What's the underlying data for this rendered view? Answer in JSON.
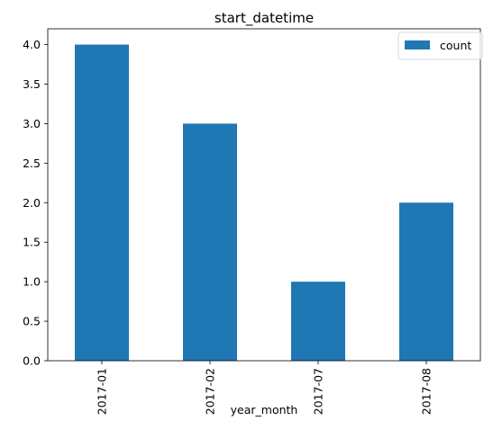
{
  "chart_data": {
    "type": "bar",
    "title": "start_datetime",
    "xlabel": "year_month",
    "ylabel": "",
    "categories": [
      "2017-01",
      "2017-02",
      "2017-07",
      "2017-08"
    ],
    "series": [
      {
        "name": "count",
        "values": [
          4.0,
          3.0,
          1.0,
          2.0
        ]
      }
    ],
    "ylim": [
      0,
      4.2
    ],
    "yticks": [
      0.0,
      0.5,
      1.0,
      1.5,
      2.0,
      2.5,
      3.0,
      3.5,
      4.0
    ],
    "ytick_labels": [
      "0.0",
      "0.5",
      "1.0",
      "1.5",
      "2.0",
      "2.5",
      "3.0",
      "3.5",
      "4.0"
    ],
    "xtick_rotation": "vertical",
    "grid": false,
    "legend_position": "upper-right",
    "colors": {
      "bar": "#1f77b4",
      "axes": "#000000",
      "background": "#ffffff",
      "legend_border": "#cccccc"
    }
  }
}
